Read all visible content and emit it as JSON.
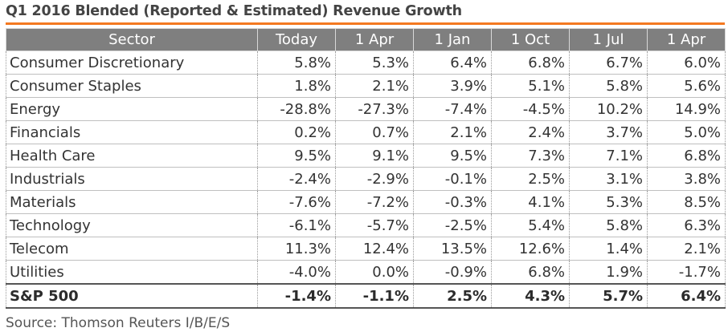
{
  "title": "Q1 2016 Blended (Reported & Estimated) Revenue Growth",
  "headers": [
    "Sector",
    "Today",
    "1 Apr",
    "1 Jan",
    "1 Oct",
    "1 Jul",
    "1 Apr"
  ],
  "rows": [
    {
      "sector": "Consumer Discretionary",
      "values": [
        "5.8%",
        "5.3%",
        "6.4%",
        "6.8%",
        "6.7%",
        "6.0%"
      ]
    },
    {
      "sector": "Consumer Staples",
      "values": [
        "1.8%",
        "2.1%",
        "3.9%",
        "5.1%",
        "5.8%",
        "5.6%"
      ]
    },
    {
      "sector": "Energy",
      "values": [
        "-28.8%",
        "-27.3%",
        "-7.4%",
        "-4.5%",
        "10.2%",
        "14.9%"
      ]
    },
    {
      "sector": "Financials",
      "values": [
        "0.2%",
        "0.7%",
        "2.1%",
        "2.4%",
        "3.7%",
        "5.0%"
      ]
    },
    {
      "sector": "Health Care",
      "values": [
        "9.5%",
        "9.1%",
        "9.5%",
        "7.3%",
        "7.1%",
        "6.8%"
      ]
    },
    {
      "sector": "Industrials",
      "values": [
        "-2.4%",
        "-2.9%",
        "-0.1%",
        "2.5%",
        "3.1%",
        "3.8%"
      ]
    },
    {
      "sector": "Materials",
      "values": [
        "-7.6%",
        "-7.2%",
        "-0.3%",
        "4.1%",
        "5.3%",
        "8.5%"
      ]
    },
    {
      "sector": "Technology",
      "values": [
        "-6.1%",
        "-5.7%",
        "-2.5%",
        "5.4%",
        "5.8%",
        "6.3%"
      ]
    },
    {
      "sector": "Telecom",
      "values": [
        "11.3%",
        "12.4%",
        "13.5%",
        "12.6%",
        "1.4%",
        "2.1%"
      ]
    },
    {
      "sector": "Utilities",
      "values": [
        "-4.0%",
        "0.0%",
        "-0.9%",
        "6.8%",
        "1.9%",
        "-1.7%"
      ]
    }
  ],
  "total": {
    "sector": "S&P 500",
    "values": [
      "-1.4%",
      "-1.1%",
      "2.5%",
      "4.3%",
      "5.7%",
      "6.4%"
    ]
  },
  "source": "Source: Thomson Reuters I/B/E/S",
  "colors": {
    "accent": "#f47920",
    "header_bg": "#7f7f7f",
    "header_text": "#ffffff"
  }
}
